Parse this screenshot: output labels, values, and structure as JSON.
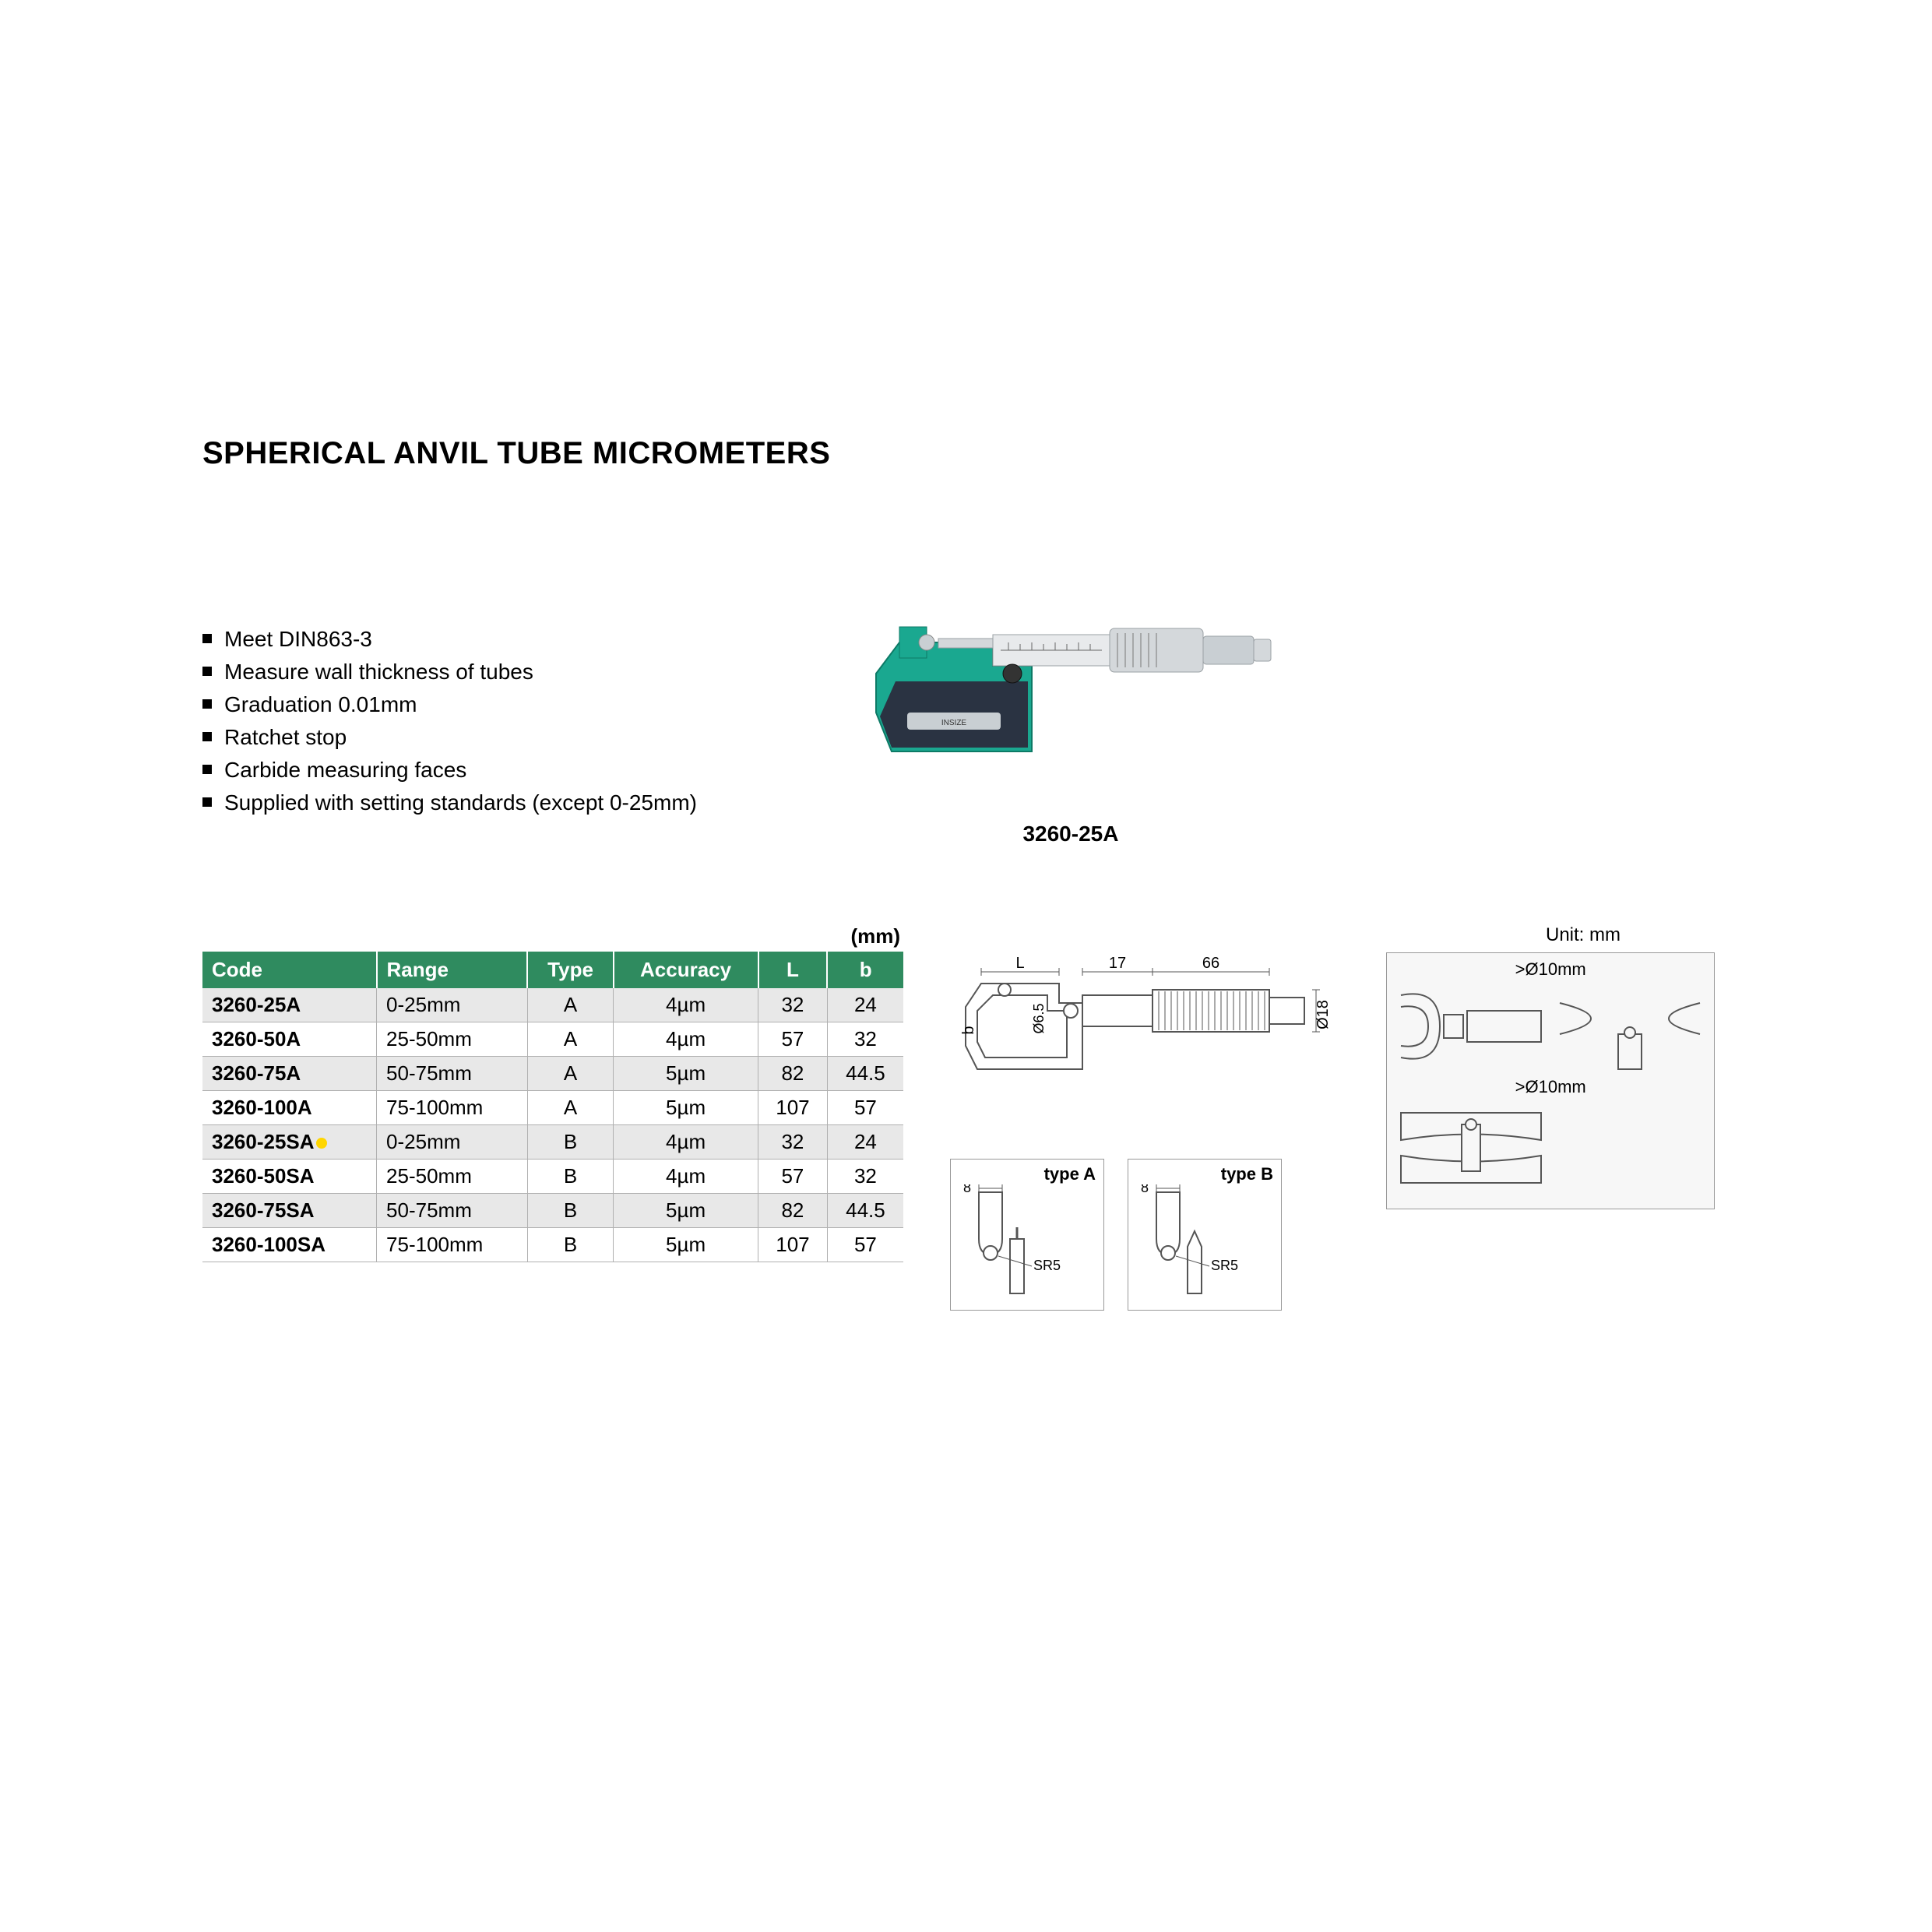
{
  "title": "SPHERICAL ANVIL TUBE MICROMETERS",
  "features": [
    "Meet DIN863-3",
    "Measure wall thickness of tubes",
    "Graduation 0.01mm",
    "Ratchet stop",
    "Carbide measuring faces",
    "Supplied with setting standards (except 0-25mm)"
  ],
  "product_label": "3260-25A",
  "table": {
    "unit_label": "(mm)",
    "columns": [
      "Code",
      "Range",
      "Type",
      "Accuracy",
      "L",
      "b"
    ],
    "rows": [
      {
        "code": "3260-25A",
        "range": "0-25mm",
        "type": "A",
        "accuracy": "4µm",
        "L": "32",
        "b": "24",
        "highlight": false
      },
      {
        "code": "3260-50A",
        "range": "25-50mm",
        "type": "A",
        "accuracy": "4µm",
        "L": "57",
        "b": "32",
        "highlight": false
      },
      {
        "code": "3260-75A",
        "range": "50-75mm",
        "type": "A",
        "accuracy": "5µm",
        "L": "82",
        "b": "44.5",
        "highlight": false
      },
      {
        "code": "3260-100A",
        "range": "75-100mm",
        "type": "A",
        "accuracy": "5µm",
        "L": "107",
        "b": "57",
        "highlight": false
      },
      {
        "code": "3260-25SA",
        "range": "0-25mm",
        "type": "B",
        "accuracy": "4µm",
        "L": "32",
        "b": "24",
        "highlight": true
      },
      {
        "code": "3260-50SA",
        "range": "25-50mm",
        "type": "B",
        "accuracy": "4µm",
        "L": "57",
        "b": "32",
        "highlight": false
      },
      {
        "code": "3260-75SA",
        "range": "50-75mm",
        "type": "B",
        "accuracy": "5µm",
        "L": "82",
        "b": "44.5",
        "highlight": false
      },
      {
        "code": "3260-100SA",
        "range": "75-100mm",
        "type": "B",
        "accuracy": "5µm",
        "L": "107",
        "b": "57",
        "highlight": false
      }
    ],
    "header_bg": "#2f8b5f",
    "header_fg": "#ffffff",
    "row_odd_bg": "#e8e8e8",
    "row_even_bg": "#ffffff",
    "marker_color": "#ffd600"
  },
  "diagram": {
    "unit_text": "Unit: mm",
    "dims": {
      "L": "L",
      "d17": "17",
      "d66": "66",
      "d18": "Ø18",
      "d65": "Ø6.5",
      "b": "b"
    },
    "typeA": {
      "title": "type A",
      "d8": "8",
      "sr": "SR5"
    },
    "typeB": {
      "title": "type B",
      "d8": "8",
      "sr": "SR5"
    },
    "side": {
      "top": ">Ø10mm",
      "bottom": ">Ø10mm"
    }
  },
  "colors": {
    "frame_green": "#1aa890",
    "grip_dark": "#2a3342",
    "metal": "#c9cfd3",
    "metal_dark": "#9aa0a4",
    "outline": "#555555"
  }
}
